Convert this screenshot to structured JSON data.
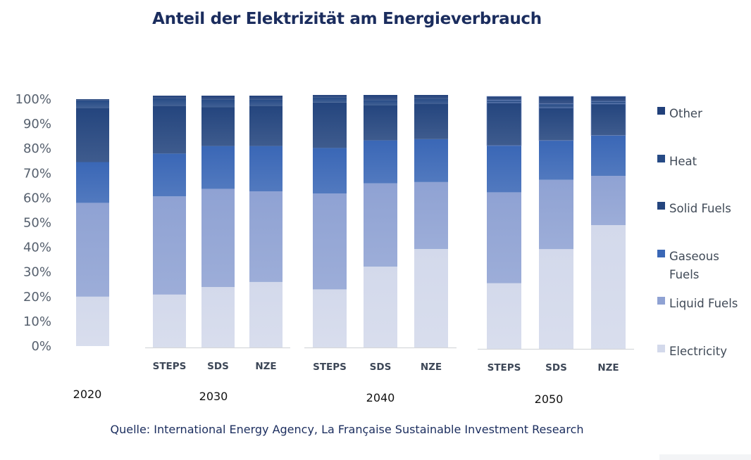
{
  "chart_data": {
    "type": "bar",
    "stacked": true,
    "title": "Anteil der Elektrizität am Energieverbrauch",
    "xlabel": "",
    "ylabel": "",
    "ylim": [
      0,
      100
    ],
    "yticks": [
      "0%",
      "10%",
      "20%",
      "30%",
      "40%",
      "50%",
      "60%",
      "70%",
      "80%",
      "90%",
      "100%"
    ],
    "grid": false,
    "legend_position": "right",
    "groups": [
      {
        "year": "2020",
        "bars": [
          {
            "label": "",
            "values": [
              20,
              38,
              16.5,
              22,
              3,
              0.5
            ]
          }
        ]
      },
      {
        "year": "2030",
        "bars": [
          {
            "label": "STEPS",
            "values": [
              21,
              39,
              17,
              19,
              3,
              1
            ]
          },
          {
            "label": "SDS",
            "values": [
              24,
              39,
              17,
              15.5,
              3,
              1.5
            ]
          },
          {
            "label": "NZE",
            "values": [
              26,
              36,
              18,
              16,
              2.5,
              1.5
            ]
          }
        ]
      },
      {
        "year": "2040",
        "bars": [
          {
            "label": "STEPS",
            "values": [
              23,
              38,
              18,
              18,
              2,
              1
            ]
          },
          {
            "label": "SDS",
            "values": [
              32,
              33,
              17,
              14,
              2,
              2
            ]
          },
          {
            "label": "NZE",
            "values": [
              39,
              26.5,
              17,
              14,
              2,
              1.5
            ]
          }
        ]
      },
      {
        "year": "2050",
        "bars": [
          {
            "label": "STEPS",
            "values": [
              26,
              36,
              18.5,
              17,
              1,
              1.5
            ]
          },
          {
            "label": "SDS",
            "values": [
              39.5,
              27.5,
              15.5,
              13,
              1.5,
              3
            ]
          },
          {
            "label": "NZE",
            "values": [
              49,
              19.5,
              16,
              12.5,
              1,
              2
            ]
          }
        ]
      }
    ],
    "series": [
      {
        "name": "Electricity",
        "color": "#d3d9eb"
      },
      {
        "name": "Liquid Fuels",
        "color": "#8fa2d3"
      },
      {
        "name": "Gaseous Fuels",
        "color": "#3a67b6"
      },
      {
        "name": "Solid Fuels",
        "color": "#24457e"
      },
      {
        "name": "Heat",
        "color": "#264a85"
      },
      {
        "name": "Other",
        "color": "#21407a"
      }
    ],
    "legend_order": [
      "Other",
      "Heat",
      "Solid Fuels",
      "Gaseous Fuels",
      "Liquid Fuels",
      "Electricity"
    ]
  },
  "legend": {
    "labels": [
      "Other",
      "Heat",
      "Solid Fuels",
      [
        "Gaseous",
        "Fuels"
      ],
      "Liquid Fuels",
      "Electricity"
    ]
  },
  "source": "Quelle: International Energy Agency, La Française Sustainable Investment Research"
}
